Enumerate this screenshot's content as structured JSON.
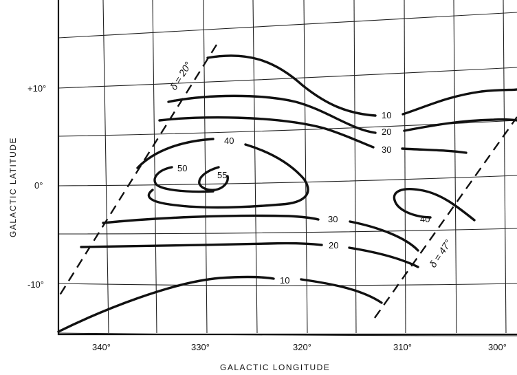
{
  "chart_data": {
    "type": "contour",
    "xlabel": "GALACTIC LONGITUDE",
    "ylabel": "GALACTIC LATITUDE",
    "x_ticks": [
      "340°",
      "330°",
      "320°",
      "310°",
      "300°"
    ],
    "y_ticks": [
      "+10°",
      "0°",
      "-10°"
    ],
    "contour_levels": [
      "10",
      "20",
      "30",
      "40",
      "50",
      "55"
    ],
    "declination_limits": [
      "δ = 20°",
      "δ = 47°"
    ],
    "contour_label_texts": [
      "10",
      "20",
      "30",
      "40",
      "50",
      "55",
      "40",
      "30",
      "20",
      "10"
    ],
    "xlim": [
      345,
      299
    ],
    "ylim": [
      -15,
      19
    ]
  }
}
